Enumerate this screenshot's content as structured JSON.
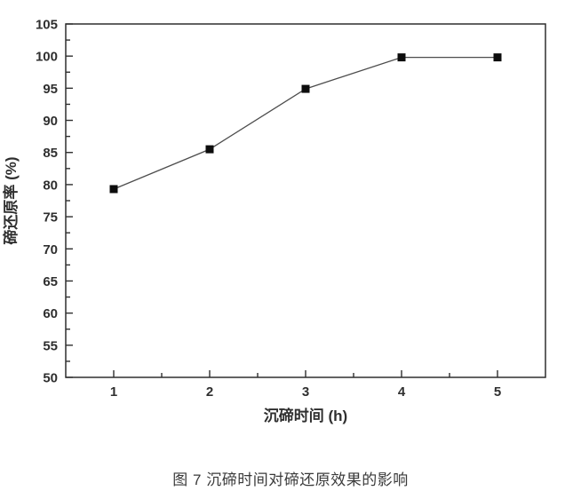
{
  "figure": {
    "caption": "图 7  沉碲时间对碲还原效果的影响"
  },
  "chart_data": {
    "type": "line",
    "title": "",
    "xlabel": "沉碲时间 (h)",
    "ylabel": "碲还原率 (%)",
    "x": [
      1,
      2,
      3,
      4,
      5
    ],
    "values": [
      79.3,
      85.5,
      94.9,
      99.8,
      99.8
    ],
    "xlim": [
      0.5,
      5.5
    ],
    "ylim": [
      50,
      105
    ],
    "x_major_ticks": [
      1,
      2,
      3,
      4,
      5
    ],
    "x_minor_ticks": [
      1.5,
      2.5,
      3.5,
      4.5
    ],
    "y_major_ticks": [
      50,
      55,
      60,
      65,
      70,
      75,
      80,
      85,
      90,
      95,
      100,
      105
    ],
    "y_minor_ticks": [
      52.5,
      57.5,
      62.5,
      67.5,
      72.5,
      77.5,
      82.5,
      87.5,
      92.5,
      97.5,
      102.5
    ],
    "marker": "square",
    "marker_size": 9,
    "grid": false,
    "legend_position": "none",
    "colors": {
      "axis": "#2f2f2f",
      "line": "#4d4d4d",
      "marker": "#0d0d0d",
      "text": "#2f2f2f"
    }
  }
}
